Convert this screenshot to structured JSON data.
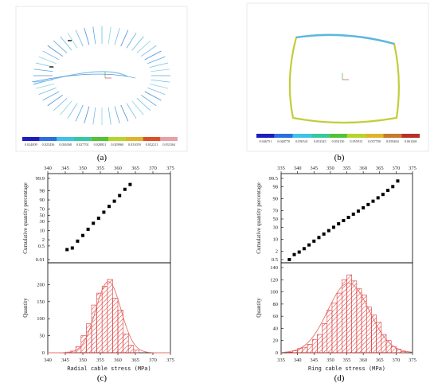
{
  "panels": {
    "a": "(a)",
    "b": "(b)",
    "c": "(c)",
    "d": "(d)"
  },
  "colorbars": {
    "a": {
      "labels": [
        "0.024009",
        "0.025436",
        "0.026568",
        "0.027701",
        "0.028831",
        "0.029960",
        "0.031059",
        "0.032211",
        "0.033364"
      ],
      "colors": [
        "#1c1cbf",
        "#2a6fe0",
        "#3fc1e8",
        "#36c9a0",
        "#52c236",
        "#b7d42a",
        "#e0b42a",
        "#d9502a",
        "#e8a0a8"
      ]
    },
    "b": {
      "labels": [
        "0.046751",
        "0.048770",
        "0.050541",
        "0.052345",
        "0.054130",
        "0.055915",
        "0.057700",
        "0.059484",
        "0.061268"
      ],
      "colors": [
        "#1c1cbf",
        "#2a6fe0",
        "#3fc1e8",
        "#36c9a0",
        "#52c236",
        "#b7d42a",
        "#e0b42a",
        "#c87a2a",
        "#b8302a"
      ]
    }
  },
  "chart_data": [
    {
      "type": "scatter",
      "panel": "c-top",
      "ylabel": "Cumulative quantity percentage",
      "xlim": [
        340,
        375
      ],
      "x_ticks": [
        340,
        345,
        350,
        355,
        360,
        365,
        370,
        375
      ],
      "y_scale": "probability",
      "y_ticks": [
        "0.01",
        "0.5",
        "2",
        "10",
        "30",
        "50",
        "70",
        "90",
        "98",
        "99.9"
      ],
      "x": [
        345.5,
        347.0,
        348.5,
        350.0,
        351.5,
        353.0,
        354.5,
        356.0,
        357.5,
        359.0,
        360.5,
        362.0,
        363.5
      ],
      "y": [
        0.2,
        0.3,
        1.5,
        4.5,
        12,
        25,
        40,
        60,
        77,
        88,
        95,
        98.5,
        99.5
      ]
    },
    {
      "type": "bar",
      "panel": "c-bottom",
      "xlabel": "Radial cable stress (MPa)",
      "ylabel": "Quantity",
      "xlim": [
        340,
        375
      ],
      "ylim": [
        0,
        250
      ],
      "x_ticks": [
        340,
        345,
        350,
        355,
        360,
        365,
        370,
        375
      ],
      "y_ticks": [
        0,
        50,
        100,
        150,
        200
      ],
      "bin_width": 1.5,
      "bin_starts": [
        345,
        346.5,
        348,
        349.5,
        351,
        352.5,
        354,
        355.5,
        357,
        358.5,
        360,
        361.5,
        363,
        364.5
      ],
      "values": [
        2,
        5,
        18,
        50,
        85,
        140,
        175,
        195,
        215,
        160,
        125,
        55,
        22,
        8
      ],
      "fit_mean": 357.3,
      "fit_sd": 3.6
    },
    {
      "type": "scatter",
      "panel": "d-top",
      "ylabel": "Cumulative quantity percentage",
      "xlim": [
        335,
        375
      ],
      "x_ticks": [
        335,
        340,
        345,
        350,
        355,
        360,
        365,
        370,
        375
      ],
      "y_scale": "probability",
      "y_ticks": [
        "0.5",
        "2",
        "10",
        "30",
        "50",
        "70",
        "90",
        "98",
        "99.5"
      ],
      "x": [
        337.5,
        339.0,
        340.5,
        342.0,
        343.5,
        345.0,
        346.5,
        348.0,
        349.5,
        351.0,
        352.5,
        354.0,
        355.5,
        357.0,
        358.5,
        360.0,
        361.5,
        363.0,
        364.5,
        366.0,
        367.5,
        369.0,
        370.5
      ],
      "y": [
        0.5,
        1.2,
        1.8,
        3.0,
        5.0,
        8.0,
        12,
        17,
        23,
        30,
        38,
        46,
        54,
        62,
        69,
        76,
        82,
        87,
        91,
        94,
        96.5,
        98,
        99.2
      ]
    },
    {
      "type": "bar",
      "panel": "d-bottom",
      "xlabel": "Ring cable stress (MPa)",
      "ylabel": "Quantity",
      "xlim": [
        335,
        375
      ],
      "ylim": [
        0,
        140
      ],
      "x_ticks": [
        335,
        340,
        345,
        350,
        355,
        360,
        365,
        370,
        375
      ],
      "y_ticks": [
        0,
        20,
        40,
        60,
        80,
        100,
        120,
        140
      ],
      "bin_width": 1.5,
      "bin_starts": [
        337,
        338.5,
        340,
        341.5,
        343,
        344.5,
        346,
        347.5,
        349,
        350.5,
        352,
        353.5,
        355,
        356.5,
        358,
        359.5,
        361,
        362.5,
        364,
        365.5,
        367,
        368.5,
        370,
        371.5
      ],
      "values": [
        1,
        3,
        7,
        9,
        14,
        22,
        30,
        48,
        70,
        82,
        98,
        120,
        128,
        118,
        105,
        95,
        75,
        62,
        50,
        30,
        20,
        10,
        6,
        2
      ],
      "fit_mean": 355.5,
      "fit_sd": 6.3
    }
  ]
}
